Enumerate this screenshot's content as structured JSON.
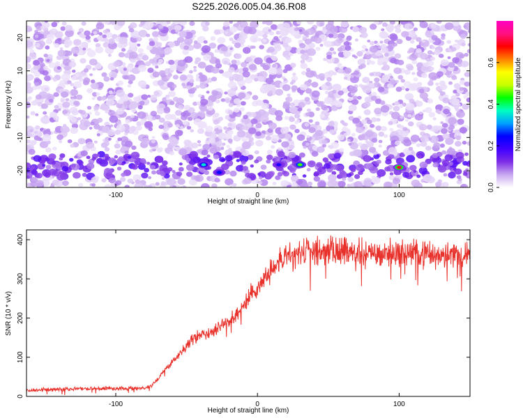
{
  "title": "S225.2026.005.04.36.R08",
  "chart_data": [
    {
      "type": "heatmap",
      "xlabel": "Height of straight line (km)",
      "ylabel": "Frequency (Hz)",
      "xlim": [
        -163,
        150
      ],
      "ylim": [
        -25,
        25
      ],
      "x_ticks": [
        -100,
        0,
        100
      ],
      "x_tick_labels": [
        "-100",
        "0",
        "100"
      ],
      "y_ticks": [
        -20,
        -10,
        0,
        10,
        20
      ],
      "y_tick_labels": [
        "-20",
        "-10",
        "0",
        "10",
        "20"
      ],
      "colorbar": {
        "label": "Normalized spectral amplitude",
        "range": [
          0,
          0.8
        ],
        "ticks": [
          0.0,
          0.2,
          0.4,
          0.6
        ],
        "tick_labels": [
          "0.0",
          "0.2",
          "0.4",
          "0.6"
        ],
        "colors": [
          "#ffffff",
          "#c9a8f0",
          "#7d2ee6",
          "#4000ff",
          "#0000ff",
          "#00a0ff",
          "#00ffc0",
          "#00ff00",
          "#c8ff00",
          "#ffff00",
          "#ff8000",
          "#ff0000",
          "#ff1080",
          "#ff00c0"
        ]
      },
      "signal_band_frequency": -18.5,
      "hotspots": [
        {
          "x": -38,
          "y": -18.2,
          "amplitude": 0.35
        },
        {
          "x": -27,
          "y": -20.5,
          "amplitude": 0.25
        },
        {
          "x": 15,
          "y": -18.2,
          "amplitude": 0.22
        },
        {
          "x": 30,
          "y": -18.2,
          "amplitude": 0.45
        },
        {
          "x": 100,
          "y": -19,
          "amplitude": 0.7
        }
      ]
    },
    {
      "type": "line",
      "xlabel": "Height of straight line (km)",
      "ylabel": "SNR (10 * v/v)",
      "xlim": [
        -163,
        150
      ],
      "ylim": [
        0,
        425
      ],
      "x_ticks": [
        -100,
        0,
        100
      ],
      "x_tick_labels": [
        "-100",
        "0",
        "100"
      ],
      "y_ticks": [
        0,
        100,
        200,
        300,
        400
      ],
      "y_tick_labels": [
        "0",
        "100",
        "200",
        "300",
        "400"
      ],
      "color": "#e8312b",
      "series": [
        {
          "name": "SNR",
          "x": [
            -163,
            -150,
            -140,
            -130,
            -120,
            -110,
            -100,
            -90,
            -80,
            -75,
            -70,
            -65,
            -60,
            -55,
            -50,
            -45,
            -40,
            -35,
            -30,
            -25,
            -20,
            -15,
            -10,
            -5,
            0,
            5,
            10,
            15,
            20,
            25,
            30,
            35,
            40,
            45,
            50,
            55,
            60,
            65,
            70,
            75,
            80,
            90,
            100,
            110,
            120,
            130,
            140,
            150
          ],
          "values": [
            15,
            17,
            18,
            20,
            20,
            20,
            20,
            20,
            22,
            26,
            45,
            70,
            90,
            110,
            130,
            148,
            158,
            160,
            170,
            180,
            195,
            210,
            230,
            260,
            280,
            300,
            320,
            340,
            355,
            360,
            365,
            370,
            372,
            368,
            370,
            372,
            370,
            368,
            370,
            365,
            362,
            368,
            365,
            368,
            362,
            365,
            362,
            360
          ]
        }
      ]
    }
  ]
}
